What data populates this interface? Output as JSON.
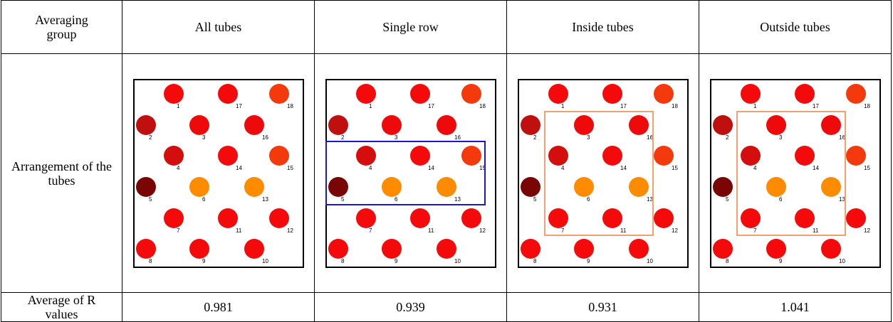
{
  "table": {
    "header": {
      "label": "Averaging group",
      "columns": [
        "All tubes",
        "Single row",
        "Inside tubes",
        "Outside tubes"
      ]
    },
    "arrangement_row": {
      "label": "Arrangement of the tubes"
    },
    "average_row": {
      "label": "Average of R values",
      "values": [
        "0.981",
        "0.939",
        "0.931",
        "1.041"
      ]
    }
  },
  "tubes": [
    {
      "id": "1",
      "color": "#f40a0a"
    },
    {
      "id": "17",
      "color": "#f40a0a"
    },
    {
      "id": "18",
      "color": "#f43a0c"
    },
    {
      "id": "2",
      "color": "#c00f0f"
    },
    {
      "id": "3",
      "color": "#ee0a0a"
    },
    {
      "id": "16",
      "color": "#ee0a0a"
    },
    {
      "id": "4",
      "color": "#d40d0d"
    },
    {
      "id": "14",
      "color": "#f40a0a"
    },
    {
      "id": "15",
      "color": "#f43a0c"
    },
    {
      "id": "5",
      "color": "#7a0505"
    },
    {
      "id": "6",
      "color": "#ff8c00"
    },
    {
      "id": "13",
      "color": "#ff8c00"
    },
    {
      "id": "7",
      "color": "#f40a0a"
    },
    {
      "id": "11",
      "color": "#f40a0a"
    },
    {
      "id": "12",
      "color": "#f40a0a"
    },
    {
      "id": "8",
      "color": "#f40a0a"
    },
    {
      "id": "9",
      "color": "#f40a0a"
    },
    {
      "id": "10",
      "color": "#f40a0a"
    }
  ],
  "highlight_colors": {
    "single_row": "#1a1acc",
    "inside": "#f4a070"
  }
}
